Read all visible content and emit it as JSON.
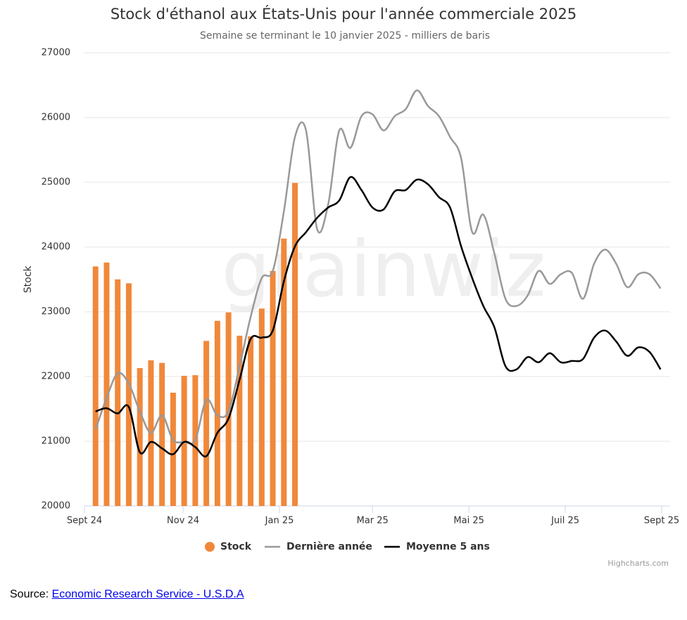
{
  "chart_data": {
    "type": "combo",
    "title": "Stock d'éthanol aux États-Unis pour l'année commerciale 2025",
    "subtitle": "Semaine se terminant le 10 janvier 2025 - milliers de baris",
    "y_label": "Stock",
    "watermark": "grainwiz",
    "credits": "Highcharts.com",
    "xlim": [
      -1,
      51.1
    ],
    "xticks": [
      {
        "value": -1,
        "label": "Sept 24"
      },
      {
        "value": 7.9,
        "label": "Nov 24"
      },
      {
        "value": 16.6,
        "label": "Jan 25"
      },
      {
        "value": 25.0,
        "label": "Mar 25"
      },
      {
        "value": 33.7,
        "label": "Mai 25"
      },
      {
        "value": 42.4,
        "label": "Juil 25"
      },
      {
        "value": 51.1,
        "label": "Sept 25"
      }
    ],
    "ylim": [
      20000,
      27000
    ],
    "yticks": [
      20000,
      21000,
      22000,
      23000,
      24000,
      25000,
      26000,
      27000
    ],
    "grid": true,
    "series": [
      {
        "name": "Stock",
        "type": "bar",
        "color": "#f0883a",
        "values": [
          23700,
          23760,
          23500,
          23440,
          22130,
          22250,
          22210,
          21750,
          22010,
          22020,
          22550,
          22860,
          22990,
          22630,
          22620,
          23050,
          23630,
          24130,
          24990
        ]
      },
      {
        "name": "Dernière année",
        "type": "line",
        "color": "#999999",
        "values": [
          21180,
          21670,
          22050,
          21890,
          21460,
          21130,
          21400,
          21020,
          20990,
          21020,
          21640,
          21400,
          21460,
          22160,
          22920,
          23520,
          23630,
          24550,
          25700,
          25800,
          24280,
          24660,
          25800,
          25530,
          26020,
          26050,
          25800,
          26020,
          26130,
          26420,
          26180,
          26020,
          25700,
          25370,
          24230,
          24500,
          23900,
          23200,
          23090,
          23250,
          23630,
          23430,
          23580,
          23600,
          23200,
          23740,
          23960,
          23740,
          23380,
          23580,
          23580,
          23360
        ]
      },
      {
        "name": "Moyenne 5 ans",
        "type": "line",
        "color": "#000000",
        "values": [
          21460,
          21510,
          21430,
          21530,
          20830,
          20990,
          20890,
          20800,
          20990,
          20910,
          20770,
          21130,
          21350,
          21950,
          22580,
          22600,
          22710,
          23470,
          24010,
          24230,
          24450,
          24610,
          24720,
          25080,
          24880,
          24610,
          24580,
          24860,
          24880,
          25040,
          24970,
          24770,
          24610,
          24010,
          23520,
          23090,
          22760,
          22160,
          22110,
          22300,
          22220,
          22360,
          22220,
          22240,
          22270,
          22600,
          22710,
          22540,
          22320,
          22450,
          22380,
          22110
        ]
      }
    ]
  },
  "source": {
    "label": "Source:",
    "link": "Economic Research Service - U.S.D.A"
  }
}
